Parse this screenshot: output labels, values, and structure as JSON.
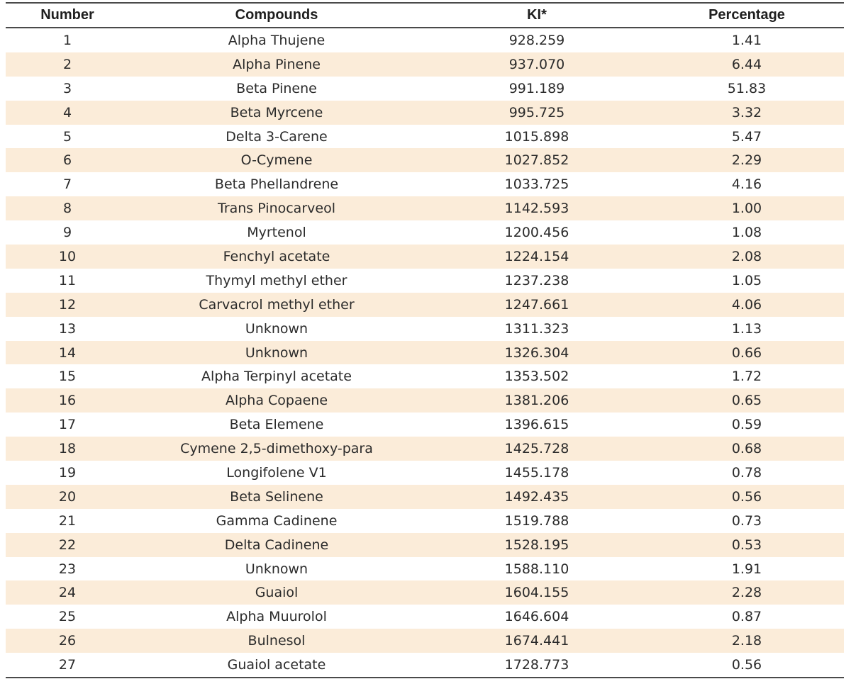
{
  "table": {
    "headers": [
      "Number",
      "Compounds",
      "KI*",
      "Percentage"
    ],
    "rows": [
      [
        "1",
        "Alpha Thujene",
        "928.259",
        "1.41"
      ],
      [
        "2",
        "Alpha Pinene",
        "937.070",
        "6.44"
      ],
      [
        "3",
        "Beta Pinene",
        "991.189",
        "51.83"
      ],
      [
        "4",
        "Beta Myrcene",
        "995.725",
        "3.32"
      ],
      [
        "5",
        "Delta 3-Carene",
        "1015.898",
        "5.47"
      ],
      [
        "6",
        "O-Cymene",
        "1027.852",
        "2.29"
      ],
      [
        "7",
        "Beta Phellandrene",
        "1033.725",
        "4.16"
      ],
      [
        "8",
        "Trans Pinocarveol",
        "1142.593",
        "1.00"
      ],
      [
        "9",
        "Myrtenol",
        "1200.456",
        "1.08"
      ],
      [
        "10",
        "Fenchyl acetate",
        "1224.154",
        "2.08"
      ],
      [
        "11",
        "Thymyl methyl ether",
        "1237.238",
        "1.05"
      ],
      [
        "12",
        "Carvacrol methyl ether",
        "1247.661",
        "4.06"
      ],
      [
        "13",
        "Unknown",
        "1311.323",
        "1.13"
      ],
      [
        "14",
        "Unknown",
        "1326.304",
        "0.66"
      ],
      [
        "15",
        "Alpha Terpinyl acetate",
        "1353.502",
        "1.72"
      ],
      [
        "16",
        "Alpha Copaene",
        "1381.206",
        "0.65"
      ],
      [
        "17",
        "Beta Elemene",
        "1396.615",
        "0.59"
      ],
      [
        "18",
        "Cymene 2,5-dimethoxy-para",
        "1425.728",
        "0.68"
      ],
      [
        "19",
        "Longifolene V1",
        "1455.178",
        "0.78"
      ],
      [
        "20",
        "Beta Selinene",
        "1492.435",
        "0.56"
      ],
      [
        "21",
        "Gamma Cadinene",
        "1519.788",
        "0.73"
      ],
      [
        "22",
        "Delta Cadinene",
        "1528.195",
        "0.53"
      ],
      [
        "23",
        "Unknown",
        "1588.110",
        "1.91"
      ],
      [
        "24",
        "Guaiol",
        "1604.155",
        "2.28"
      ],
      [
        "25",
        "Alpha Muurolol",
        "1646.604",
        "0.87"
      ],
      [
        "26",
        "Bulnesol",
        "1674.441",
        "2.18"
      ],
      [
        "27",
        "Guaiol acetate",
        "1728.773",
        "0.56"
      ]
    ],
    "stripe_color": "#fbecd9",
    "rule_color": "#4a4a4a"
  }
}
